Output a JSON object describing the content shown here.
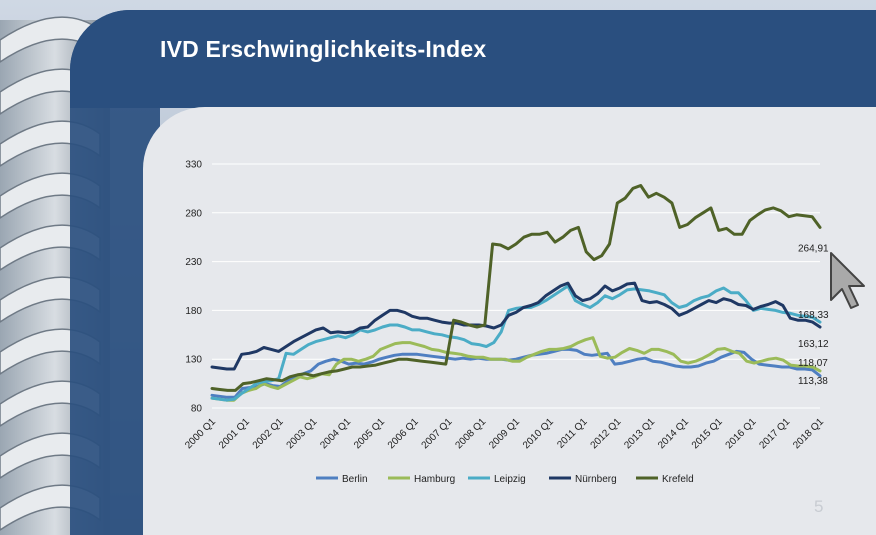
{
  "slide": {
    "title": "IVD Erschwinglichkeits-Index",
    "page_number": "5"
  },
  "colors": {
    "title_bar": "#2a4f7f",
    "panel": "#e6e8ec",
    "Berlin": "#4f7fc1",
    "Hamburg": "#9bbb59",
    "Leipzig": "#4bacc6",
    "Nürnberg": "#1f3864",
    "Krefeld": "#4f6228"
  },
  "chart_data": {
    "type": "line",
    "title": "",
    "xlabel": "",
    "ylabel": "",
    "ylim": [
      80,
      330
    ],
    "yticks": [
      80,
      130,
      180,
      230,
      280,
      330
    ],
    "x_tick_labels": [
      "2000 Q1",
      "2001 Q1",
      "2002 Q1",
      "2003 Q1",
      "2004 Q1",
      "2005 Q1",
      "2006 Q1",
      "2007 Q1",
      "2008 Q1",
      "2009 Q1",
      "2010 Q1",
      "2011 Q1",
      "2012 Q1",
      "2013 Q1",
      "2014 Q1",
      "2015 Q1",
      "2016 Q1",
      "2017 Q1",
      "2018 Q1"
    ],
    "grid": "horizontal",
    "legend_position": "bottom",
    "series": [
      {
        "name": "Berlin",
        "end_label": "113,38",
        "values": [
          93,
          92,
          91,
          91,
          100,
          101,
          102,
          105,
          103,
          102,
          108,
          112,
          115,
          118,
          125,
          128,
          130,
          128,
          125,
          126,
          125,
          127,
          130,
          132,
          134,
          135,
          135,
          135,
          134,
          133,
          132,
          131,
          130,
          131,
          130,
          131,
          130,
          130,
          130,
          129,
          130,
          132,
          134,
          135,
          136,
          138,
          140,
          140,
          139,
          135,
          134,
          135,
          136,
          125,
          126,
          128,
          130,
          131,
          128,
          127,
          125,
          123,
          122,
          122,
          123,
          126,
          128,
          132,
          135,
          138,
          137,
          130,
          125,
          124,
          123,
          122,
          122,
          120,
          120,
          119,
          113
        ]
      },
      {
        "name": "Hamburg",
        "end_label": "118,07",
        "values": [
          90,
          89,
          88,
          88,
          95,
          98,
          100,
          105,
          102,
          100,
          104,
          108,
          112,
          110,
          112,
          115,
          114,
          125,
          130,
          130,
          128,
          130,
          133,
          140,
          143,
          146,
          147,
          147,
          145,
          143,
          140,
          139,
          137,
          136,
          135,
          133,
          132,
          132,
          130,
          130,
          130,
          128,
          128,
          132,
          135,
          138,
          140,
          140,
          141,
          143,
          147,
          150,
          152,
          133,
          131,
          132,
          137,
          141,
          139,
          136,
          140,
          140,
          138,
          135,
          128,
          126,
          128,
          131,
          135,
          140,
          141,
          138,
          136,
          128,
          126,
          128,
          130,
          131,
          129,
          124,
          123,
          123,
          122,
          118
        ]
      },
      {
        "name": "Leipzig",
        "end_label": "168,33",
        "values": [
          90,
          89,
          88,
          89,
          95,
          100,
          105,
          107,
          108,
          110,
          136,
          135,
          140,
          145,
          148,
          150,
          152,
          154,
          152,
          155,
          160,
          158,
          160,
          163,
          165,
          165,
          163,
          160,
          160,
          158,
          156,
          155,
          153,
          152,
          150,
          146,
          145,
          143,
          147,
          158,
          180,
          182,
          183,
          183,
          186,
          190,
          195,
          200,
          205,
          190,
          186,
          183,
          188,
          195,
          192,
          196,
          201,
          202,
          201,
          200,
          198,
          196,
          188,
          183,
          185,
          190,
          193,
          195,
          200,
          203,
          198,
          198,
          190,
          180,
          182,
          181,
          180,
          178,
          177,
          175,
          174,
          173,
          168
        ]
      },
      {
        "name": "Nürnberg",
        "end_label": "163,12",
        "values": [
          122,
          121,
          120,
          120,
          135,
          136,
          138,
          142,
          140,
          138,
          143,
          148,
          152,
          156,
          160,
          162,
          157,
          158,
          157,
          158,
          162,
          163,
          170,
          175,
          180,
          180,
          178,
          174,
          172,
          172,
          170,
          168,
          167,
          167,
          165,
          165,
          165,
          164,
          162,
          165,
          175,
          178,
          183,
          185,
          188,
          195,
          200,
          205,
          208,
          195,
          190,
          192,
          197,
          205,
          200,
          203,
          207,
          208,
          190,
          188,
          189,
          186,
          182,
          175,
          178,
          182,
          186,
          190,
          188,
          192,
          190,
          186,
          185,
          181,
          184,
          186,
          189,
          185,
          172,
          170,
          170,
          168,
          163
        ]
      },
      {
        "name": "Krefeld",
        "end_label": "264,91",
        "values": [
          100,
          99,
          98,
          98,
          105,
          106,
          108,
          110,
          109,
          108,
          112,
          114,
          115,
          113,
          115,
          117,
          118,
          120,
          122,
          122,
          123,
          124,
          126,
          128,
          130,
          130,
          129,
          128,
          127,
          126,
          125,
          170,
          168,
          165,
          163,
          165,
          248,
          247,
          243,
          248,
          255,
          258,
          258,
          260,
          250,
          255,
          262,
          265,
          240,
          232,
          236,
          248,
          290,
          295,
          305,
          308,
          296,
          300,
          296,
          290,
          265,
          268,
          275,
          280,
          285,
          262,
          264,
          258,
          258,
          272,
          278,
          283,
          285,
          282,
          276,
          278,
          277,
          276,
          265
        ]
      }
    ]
  }
}
